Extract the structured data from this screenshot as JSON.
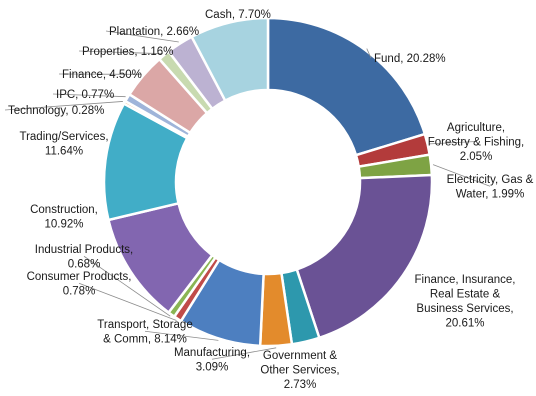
{
  "chart_data": {
    "type": "pie",
    "donut": true,
    "title": "",
    "legend": "none",
    "slices": [
      {
        "name": "Fund",
        "value": 20.28,
        "label": [
          "Fund, 20.28%"
        ],
        "color": "#3d6aa2"
      },
      {
        "name": "Agriculture, Forestry & Fishing",
        "value": 2.05,
        "label": [
          "Agriculture,",
          "Forestry & Fishing,",
          "2.05%"
        ],
        "color": "#b33b3b"
      },
      {
        "name": "Electricity, Gas & Water",
        "value": 1.99,
        "label": [
          "Electricity, Gas &",
          "Water, 1.99%"
        ],
        "color": "#7ea344"
      },
      {
        "name": "Finance, Insurance, Real Estate & Business Services",
        "value": 20.61,
        "label": [
          "Finance, Insurance,",
          "Real Estate &",
          "Business Services,",
          "20.61%"
        ],
        "color": "#6a5295"
      },
      {
        "name": "Government & Other Services",
        "value": 2.73,
        "label": [
          "Government &",
          "Other Services,",
          "2.73%"
        ],
        "color": "#2d98ad"
      },
      {
        "name": "Manufacturing",
        "value": 3.09,
        "label": [
          "Manufacturing,",
          "3.09%"
        ],
        "color": "#e38b2c"
      },
      {
        "name": "Transport, Storage & Comm",
        "value": 8.14,
        "label": [
          "Transport, Storage",
          "& Comm, 8.14%"
        ],
        "color": "#4d7fc0"
      },
      {
        "name": "Consumer Products",
        "value": 0.78,
        "label": [
          "Consumer Products,",
          "0.78%"
        ],
        "color": "#c04b49"
      },
      {
        "name": "Industrial Products",
        "value": 0.68,
        "label": [
          "Industrial Products,",
          "0.68%"
        ],
        "color": "#8ab554"
      },
      {
        "name": "Construction",
        "value": 10.92,
        "label": [
          "Construction,",
          "10.92%"
        ],
        "color": "#8266b0"
      },
      {
        "name": "Trading/Services",
        "value": 11.64,
        "label": [
          "Trading/Services,",
          "11.64%"
        ],
        "color": "#41adc7"
      },
      {
        "name": "Technology",
        "value": 0.28,
        "label": [
          "Technology, 0.28%"
        ],
        "color": "#f2a15c"
      },
      {
        "name": "IPC",
        "value": 0.77,
        "label": [
          "IPC, 0.77%"
        ],
        "color": "#9fb4d9"
      },
      {
        "name": "Finance",
        "value": 4.5,
        "label": [
          "Finance, 4.50%"
        ],
        "color": "#dba7a6"
      },
      {
        "name": "Properties",
        "value": 1.16,
        "label": [
          "Properties, 1.16%"
        ],
        "color": "#c8dab0"
      },
      {
        "name": "Plantation",
        "value": 2.66,
        "label": [
          "Plantation, 2.66%"
        ],
        "color": "#bcb2d2"
      },
      {
        "name": "Cash",
        "value": 7.7,
        "label": [
          "Cash, 7.70%"
        ],
        "color": "#a7d3e0"
      }
    ]
  }
}
